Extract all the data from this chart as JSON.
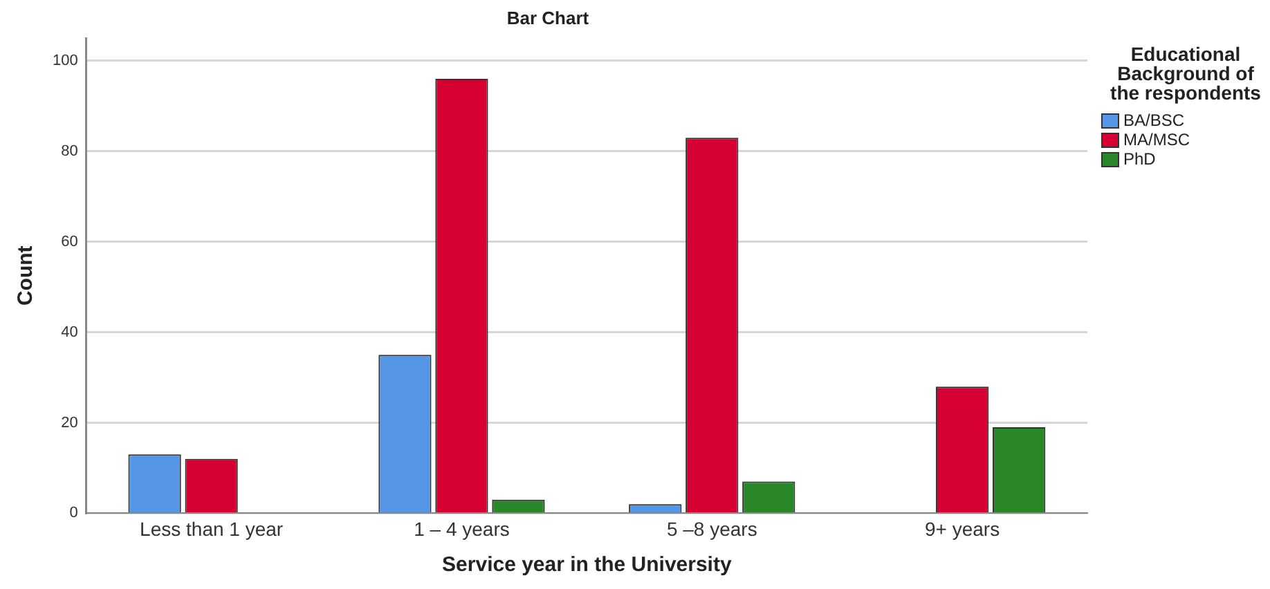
{
  "chart_data": {
    "type": "bar",
    "title": "Bar Chart",
    "xlabel": "Service year in the University",
    "ylabel": "Count",
    "legend_title": "Educational Background of the respondents",
    "categories": [
      "Less than 1 year",
      "1 – 4 years",
      "5 –8 years",
      "9+ years"
    ],
    "series": [
      {
        "name": "BA/BSC",
        "color": "#5596e6",
        "values": [
          13,
          35,
          2,
          null
        ]
      },
      {
        "name": "MA/MSC",
        "color": "#d70032",
        "values": [
          12,
          96,
          83,
          28
        ]
      },
      {
        "name": "PhD",
        "color": "#2a882a",
        "values": [
          null,
          3,
          7,
          19
        ]
      }
    ],
    "ylim": [
      0,
      105
    ],
    "yticks": [
      0,
      20,
      40,
      60,
      80,
      100
    ],
    "grid": "y",
    "legend": "top right"
  }
}
